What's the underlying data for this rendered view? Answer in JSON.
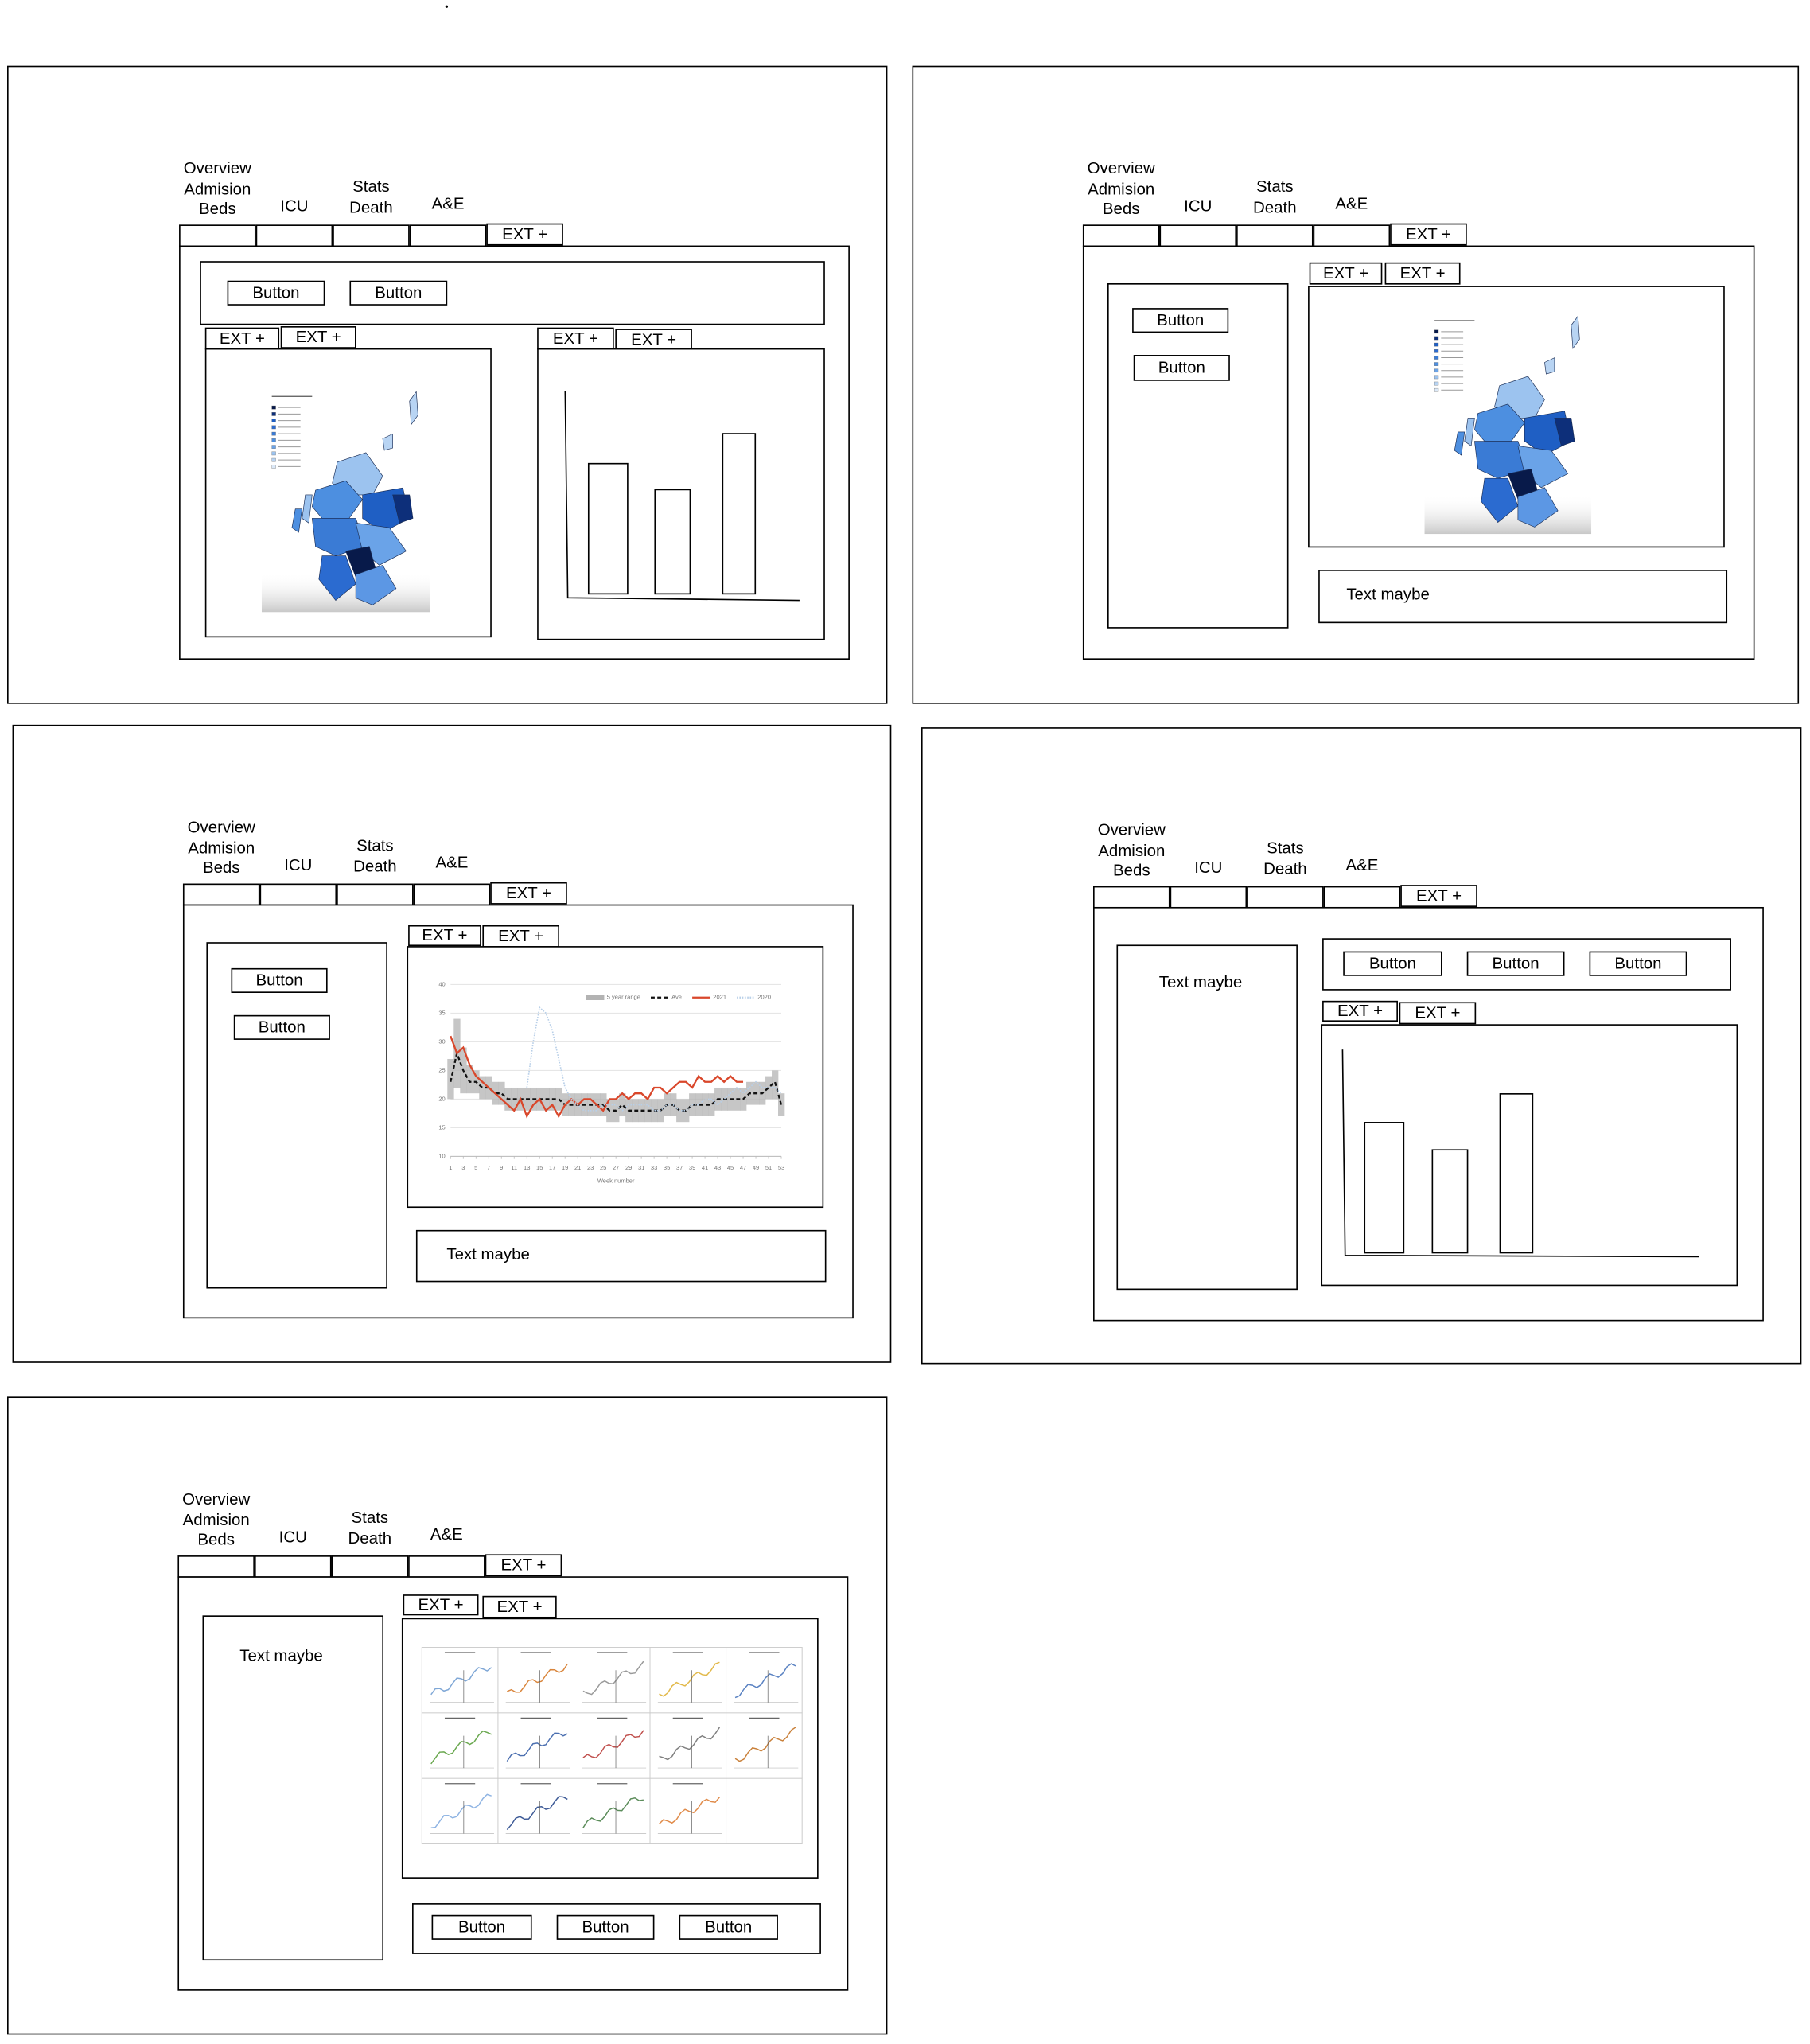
{
  "frames": [
    {
      "tabs": [
        [
          "Overview",
          "Admision",
          "Beds"
        ],
        [
          "ICU"
        ],
        [
          "Stats",
          "Death"
        ],
        [
          "A&E"
        ]
      ],
      "tab_extra": "EXT +",
      "toolbar": {
        "buttons": [
          "Button",
          "Button"
        ]
      },
      "panels": [
        {
          "tabs": [
            "EXT +",
            "EXT +"
          ]
        },
        {
          "tabs": [
            "EXT +",
            "EXT +"
          ]
        }
      ]
    },
    {
      "tabs": [
        [
          "Overview",
          "Admision",
          "Beds"
        ],
        [
          "ICU"
        ],
        [
          "Stats",
          "Death"
        ],
        [
          "A&E"
        ]
      ],
      "tab_extra": "EXT +",
      "sidebar": {
        "buttons": [
          "Button",
          "Button"
        ]
      },
      "panels": [
        {
          "tabs": [
            "EXT +",
            "EXT +"
          ]
        }
      ],
      "text_box": "Text maybe"
    },
    {
      "tabs": [
        [
          "Overview",
          "Admision",
          "Beds"
        ],
        [
          "ICU"
        ],
        [
          "Stats",
          "Death"
        ],
        [
          "A&E"
        ]
      ],
      "tab_extra": "EXT +",
      "sidebar": {
        "buttons": [
          "Button",
          "Button"
        ]
      },
      "panels": [
        {
          "tabs": [
            "EXT +",
            "EXT +"
          ],
          "chart": {
            "type": "line",
            "x": [
              1,
              2,
              3,
              4,
              5,
              6,
              7,
              8,
              9,
              10,
              11,
              12,
              13,
              14,
              15,
              16,
              17,
              18,
              19,
              20,
              21,
              22,
              23,
              24,
              25,
              26,
              27,
              28,
              29,
              30,
              31,
              32,
              33,
              34,
              35,
              36,
              37,
              38,
              39,
              40,
              41,
              42,
              43,
              44,
              45,
              46,
              47,
              48,
              49,
              50,
              51,
              52,
              53
            ],
            "xlim": [
              1,
              53
            ],
            "ylim": [
              10,
              40
            ],
            "xticks": [
              1,
              3,
              5,
              7,
              9,
              11,
              13,
              15,
              17,
              19,
              21,
              23,
              25,
              27,
              29,
              31,
              33,
              35,
              37,
              39,
              41,
              43,
              45,
              47,
              49,
              51,
              53
            ],
            "yticks": [
              10,
              15,
              20,
              25,
              30,
              35,
              40
            ],
            "x_label": "Week number",
            "grid": true,
            "series": [
              {
                "name": "5 year range",
                "color": "#b3b3b3",
                "low": [
                  20,
                  22,
                  21,
                  21,
                  21,
                  20,
                  20,
                  19,
                  19,
                  18,
                  18,
                  18,
                  18,
                  18,
                  18,
                  18,
                  18,
                  18,
                  17,
                  17,
                  17,
                  17,
                  17,
                  17,
                  17,
                  16,
                  16,
                  17,
                  16,
                  16,
                  16,
                  16,
                  16,
                  16,
                  17,
                  17,
                  16,
                  16,
                  17,
                  17,
                  17,
                  17,
                  18,
                  18,
                  18,
                  18,
                  18,
                  19,
                  19,
                  19,
                  20,
                  20,
                  17
                ],
                "high": [
                  27,
                  34,
                  29,
                  26,
                  25,
                  24,
                  24,
                  23,
                  23,
                  22,
                  22,
                  22,
                  22,
                  22,
                  22,
                  22,
                  22,
                  22,
                  21,
                  21,
                  21,
                  21,
                  21,
                  21,
                  21,
                  20,
                  20,
                  21,
                  20,
                  20,
                  20,
                  20,
                  20,
                  20,
                  21,
                  21,
                  20,
                  20,
                  21,
                  21,
                  21,
                  21,
                  22,
                  22,
                  22,
                  22,
                  22,
                  23,
                  23,
                  23,
                  24,
                  25,
                  21
                ]
              },
              {
                "name": "Ave",
                "color": "#111111",
                "style": "dashed",
                "values": [
                  23,
                  28,
                  25,
                  23,
                  23,
                  22,
                  22,
                  21,
                  21,
                  20,
                  20,
                  20,
                  20,
                  20,
                  20,
                  20,
                  20,
                  20,
                  19,
                  19,
                  19,
                  19,
                  19,
                  19,
                  19,
                  18,
                  18,
                  19,
                  18,
                  18,
                  18,
                  18,
                  18,
                  18,
                  19,
                  19,
                  18,
                  18,
                  19,
                  19,
                  19,
                  19,
                  20,
                  20,
                  20,
                  20,
                  20,
                  21,
                  21,
                  21,
                  22,
                  23,
                  19
                ]
              },
              {
                "name": "2021",
                "color": "#d9472b",
                "style": "solid",
                "values": [
                  31,
                  28,
                  29,
                  26,
                  24,
                  23,
                  22,
                  21,
                  20,
                  19,
                  18,
                  20,
                  17,
                  19,
                  20,
                  18,
                  19,
                  17,
                  19,
                  20,
                  19,
                  20,
                  20,
                  19,
                  18,
                  20,
                  20,
                  21,
                  20,
                  21,
                  21,
                  20,
                  22,
                  22,
                  21,
                  22,
                  23,
                  23,
                  22,
                  24,
                  23,
                  23,
                  24,
                  23,
                  24,
                  23,
                  23,
                  null,
                  null,
                  null,
                  null,
                  null,
                  null
                ]
              },
              {
                "name": "2020",
                "color": "#b8cfe8",
                "style": "dotted",
                "values": [
                  null,
                  null,
                  null,
                  null,
                  null,
                  null,
                  null,
                  null,
                  null,
                  null,
                  null,
                  null,
                  22,
                  30,
                  36,
                  35,
                  32,
                  27,
                  22,
                  20,
                  19,
                  18,
                  18,
                  18,
                  19,
                  19,
                  19,
                  18,
                  19,
                  19,
                  19,
                  19,
                  18,
                  18,
                  19,
                  19,
                  18,
                  18,
                  19,
                  19,
                  20,
                  20,
                  19,
                  20,
                  21,
                  22,
                  21,
                  22,
                  23,
                  22,
                  22,
                  22,
                  21
                ]
              }
            ]
          }
        }
      ],
      "text_box": "Text maybe"
    },
    {
      "tabs": [
        [
          "Overview",
          "Admision",
          "Beds"
        ],
        [
          "ICU"
        ],
        [
          "Stats",
          "Death"
        ],
        [
          "A&E"
        ]
      ],
      "tab_extra": "EXT +",
      "sidebar": {
        "text": "Text maybe"
      },
      "toolbar": {
        "buttons": [
          "Button",
          "Button",
          "Button"
        ]
      },
      "panels": [
        {
          "tabs": [
            "EXT +",
            "EXT +"
          ]
        }
      ]
    },
    {
      "tabs": [
        [
          "Overview",
          "Admision",
          "Beds"
        ],
        [
          "ICU"
        ],
        [
          "Stats",
          "Death"
        ],
        [
          "A&E"
        ]
      ],
      "tab_extra": "EXT +",
      "sidebar": {
        "text": "Text maybe"
      },
      "panels": [
        {
          "tabs": [
            "EXT +",
            "EXT +"
          ]
        }
      ],
      "toolbar": {
        "buttons": [
          "Button",
          "Button",
          "Button"
        ]
      }
    }
  ]
}
